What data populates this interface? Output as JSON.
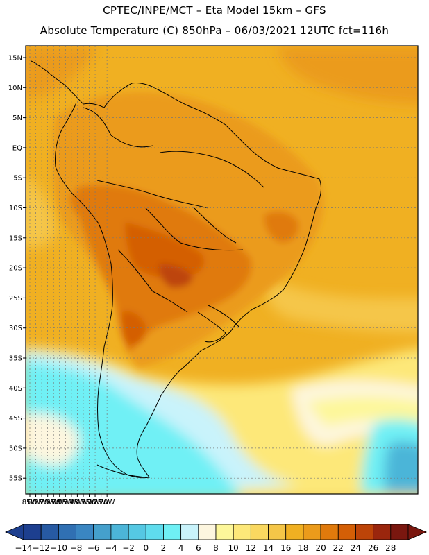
{
  "header": {
    "line1": "CPTEC/INPE/MCT –  Eta Model 15km – GFS",
    "line2": "Absolute Temperature (C) 850hPa – 06/03/2021 12UTC fct=116h"
  },
  "map": {
    "lat_labels": [
      "15N",
      "10N",
      "5N",
      "EQ",
      "5S",
      "10S",
      "15S",
      "20S",
      "25S",
      "30S",
      "35S",
      "40S",
      "45S",
      "50S",
      "55S"
    ],
    "lon_labels": [
      "85W",
      "80W",
      "75W",
      "70W",
      "65W",
      "60W",
      "55W",
      "50W",
      "45W",
      "40W",
      "35W",
      "30W",
      "25W",
      "20W"
    ]
  },
  "colorbar": {
    "labels": [
      "-14",
      "-12",
      "-10",
      "-8",
      "-6",
      "-4",
      "-2",
      "0",
      "2",
      "4",
      "6",
      "8",
      "10",
      "12",
      "14",
      "16",
      "18",
      "20",
      "22",
      "24",
      "26",
      "28"
    ],
    "colors": [
      "#1d3f8f",
      "#275aa3",
      "#3070b3",
      "#3a86c2",
      "#45a0cc",
      "#4cb5d8",
      "#55c8e3",
      "#5fdced",
      "#6ff0f5",
      "#c9f3fb",
      "#fdf6df",
      "#fdf79a",
      "#fde879",
      "#f9d860",
      "#f5c648",
      "#f0b022",
      "#eb9b1b",
      "#e07a0c",
      "#d45f06",
      "#bd4408",
      "#9a260d",
      "#7a170f"
    ],
    "under_color": "#1d3f8f",
    "over_color": "#7a170f"
  }
}
